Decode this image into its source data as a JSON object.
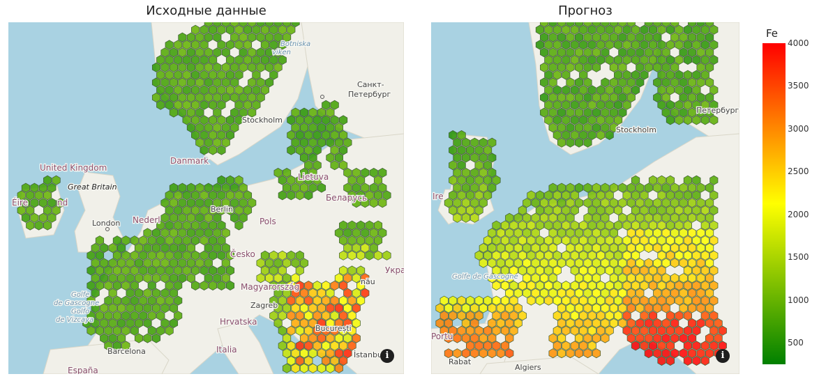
{
  "left_panel": {
    "title": "Исходные данные",
    "labels": {
      "uk": "United Kingdom",
      "gb": "Great Britain",
      "eire": "Éire",
      "ireland_tail": "nd",
      "london": "London",
      "nederland": "Nederl",
      "danmark": "Danmark",
      "stockholm": "Stockholm",
      "spb1": "Санкт-",
      "spb2": "Петербург",
      "lietuva": "Lietuva",
      "belarus": "Беларусь",
      "pol": "Pols",
      "cesko": "Česko",
      "berlin": "Berlin",
      "magyar": "Magyarország",
      "zagreb": "Zagreb",
      "hrvatska": "Hrvatska",
      "italia": "Italia",
      "bucuresti": "București",
      "barcelona": "Barcelona",
      "espana": "España",
      "golfe1": "Golfe",
      "golfe2": "de Gascogne",
      "golfo1": "Golfo",
      "golfo2": "de Vizcaya",
      "ukr": "Укра",
      "istanbul": "İstanbul",
      "nau": "nău",
      "vik1": "Botniska",
      "vik2": "viken"
    }
  },
  "right_panel": {
    "title": "Прогноз",
    "labels": {
      "stockholm": "Stockholm",
      "spb": "Петербург",
      "algiers": "Algiers",
      "rabat": "Rabat",
      "portugal": "Portu",
      "golfe": "Golfe de Gascogne",
      "ireland": "Ire"
    }
  },
  "info_icon": "i",
  "colorbar": {
    "title": "Fe",
    "min": 250,
    "max": 4000,
    "ticks": [
      "4000",
      "3500",
      "3000",
      "2500",
      "2000",
      "1500",
      "1000",
      "500"
    ],
    "tick_values": [
      4000,
      3500,
      3000,
      2500,
      2000,
      1500,
      1000,
      500
    ],
    "colors": [
      "#008000",
      "#80c000",
      "#ffff00",
      "#ff8000",
      "#ff0000"
    ]
  },
  "colors": {
    "water": "#a9d2e2",
    "land": "#f1f0e9",
    "hex_stroke": "#3c5a34"
  }
}
